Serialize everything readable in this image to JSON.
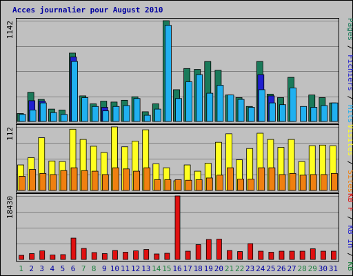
{
  "chart_data": {
    "type": "bar",
    "title": "Acces journalier pour August 2010",
    "categories": [
      "1",
      "2",
      "3",
      "4",
      "5",
      "6",
      "7",
      "8",
      "9",
      "10",
      "11",
      "12",
      "13",
      "14",
      "15",
      "16",
      "17",
      "18",
      "19",
      "20",
      "21",
      "22",
      "23",
      "24",
      "25",
      "26",
      "27",
      "28",
      "29",
      "30",
      "31"
    ],
    "weekend_days": [
      "1",
      "7",
      "8",
      "14",
      "15",
      "21",
      "22",
      "28",
      "29"
    ],
    "colors": {
      "pages": "#1a7a5a",
      "files": "#2020d0",
      "hits": "#20b0f0",
      "visits": "#ffff20",
      "sites": "#f08010",
      "kb_in": "#e01010",
      "day_weekday": "#0000a0",
      "day_weekend": "#208040",
      "title": "#0000a0",
      "background": "#c0c0c0"
    },
    "panels": [
      {
        "ymax_label": "1142",
        "legend": [
          {
            "text": "Pages",
            "color": "#1a7a5a"
          },
          {
            "text": " / ",
            "color": "#000000"
          },
          {
            "text": "Fichiers",
            "color": "#2020d0"
          },
          {
            "text": " / ",
            "color": "#000000"
          },
          {
            "text": "Hits",
            "color": "#20b0f0"
          }
        ],
        "series": [
          {
            "name": "Pages",
            "values": [
              90,
              330,
              250,
              140,
              130,
              775,
              290,
              200,
              230,
              220,
              240,
              280,
              110,
              200,
              1142,
              360,
              600,
              590,
              680,
              580,
              300,
              270,
              170,
              680,
              310,
              270,
              500,
              0,
              300,
              270,
              210
            ]
          },
          {
            "name": "Fichiers",
            "values": [
              0,
              235,
              230,
              0,
              0,
              730,
              0,
              0,
              160,
              0,
              0,
              0,
              0,
              0,
              0,
              0,
              0,
              0,
              0,
              0,
              0,
              0,
              0,
              530,
              290,
              0,
              0,
              0,
              0,
              0,
              0
            ]
          },
          {
            "name": "Hits",
            "values": [
              80,
              130,
              210,
              100,
              80,
              680,
              270,
              170,
              120,
              170,
              180,
              260,
              70,
              140,
              1090,
              260,
              450,
              530,
              320,
              410,
              300,
              250,
              160,
              360,
              210,
              190,
              380,
              170,
              160,
              180,
              210
            ]
          }
        ]
      },
      {
        "ymax_label": "112",
        "legend": [
          {
            "text": "Visites",
            "color": "#ffff20"
          },
          {
            "text": " / ",
            "color": "#000000"
          },
          {
            "text": "Sites",
            "color": "#f08010"
          }
        ],
        "series": [
          {
            "name": "Visites",
            "values": [
              45,
              58,
              93,
              52,
              51,
              108,
              90,
              78,
              67,
              112,
              77,
              87,
              107,
              47,
              40,
              17,
              45,
              34,
              48,
              85,
              100,
              54,
              74,
              101,
              90,
              76,
              90,
              51,
              79,
              80,
              79
            ]
          },
          {
            "name": "Sites",
            "values": [
              25,
              37,
              30,
              28,
              35,
              40,
              35,
              34,
              28,
              40,
              38,
              34,
              40,
              19,
              19,
              19,
              18,
              19,
              22,
              27,
              40,
              20,
              20,
              40,
              40,
              28,
              30,
              27,
              28,
              28,
              30
            ]
          }
        ]
      },
      {
        "ymax_label": "18430",
        "legend": [
          {
            "text": "KB F",
            "color": "#e01010"
          },
          {
            "text": " / ",
            "color": "#000000"
          },
          {
            "text": "KB In",
            "color": "#2020d0"
          },
          {
            "text": " / ",
            "color": "#000000"
          },
          {
            "text": "KB Out",
            "color": "#208040"
          }
        ],
        "series": [
          {
            "name": "KB F",
            "values": [
              1200,
              1700,
              2500,
              1300,
              1400,
              6200,
              3200,
              2000,
              1700,
              2600,
              2100,
              2500,
              2900,
              1600,
              1800,
              18430,
              2400,
              4300,
              5800,
              5900,
              2600,
              2300,
              4600,
              2400,
              2100,
              2400,
              2400,
              2400,
              3100,
              2400,
              2400
            ]
          }
        ]
      }
    ]
  }
}
